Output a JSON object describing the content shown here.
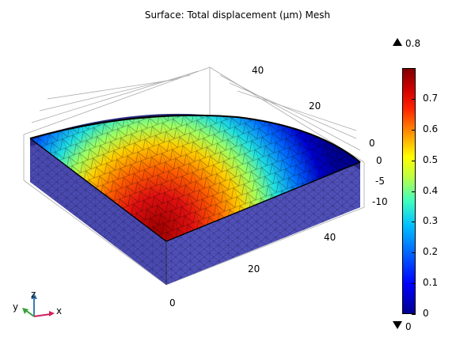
{
  "title": "Surface: Total displacement (µm) Mesh",
  "axes": {
    "y_ticks": [
      "40",
      "20",
      "0"
    ],
    "x_ticks": [
      "0",
      "20",
      "40"
    ],
    "z_ticks": [
      "0",
      "-5",
      "-10"
    ]
  },
  "colorbar": {
    "max_label": "0.8",
    "min_label": "0",
    "ticks": [
      "0.7",
      "0.6",
      "0.5",
      "0.4",
      "0.3",
      "0.2",
      "0.1",
      "0"
    ],
    "tick_values": [
      0.7,
      0.6,
      0.5,
      0.4,
      0.3,
      0.2,
      0.1,
      0.0
    ],
    "range": [
      0.0,
      0.8
    ]
  },
  "triad": {
    "x": "x",
    "y": "y",
    "z": "z"
  },
  "colors": {
    "mesh_side": "#4444aa",
    "top_edge": "#000000",
    "peak": "#cc0000"
  }
}
